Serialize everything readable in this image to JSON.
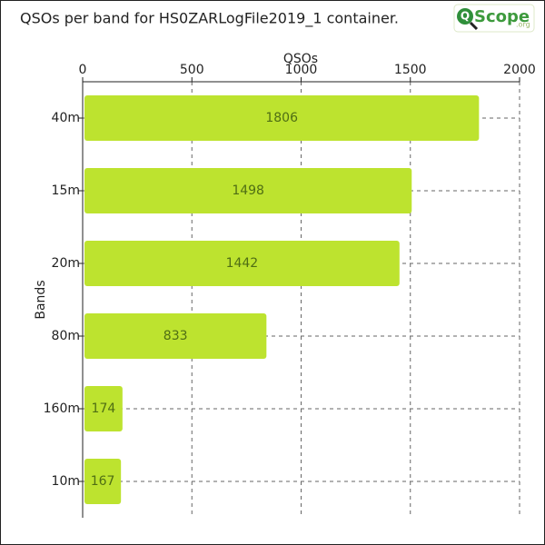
{
  "chart_data": {
    "type": "bar",
    "orientation": "horizontal",
    "title": "QSOs per band for HS0ZARLogFile2019_1 container.",
    "logo": {
      "mark": "Q",
      "text": "Scope",
      "suffix": ".org"
    },
    "x_label": "QSOs",
    "y_label": "Bands",
    "categories": [
      "40m",
      "15m",
      "20m",
      "80m",
      "160m",
      "10m"
    ],
    "values": [
      1806,
      1498,
      1442,
      833,
      174,
      167
    ],
    "color": "#bde32f",
    "label_color": "#4f6e14",
    "xlim": [
      0,
      2000
    ],
    "xticks": [
      0,
      500,
      1000,
      1500,
      2000
    ],
    "grid": true
  }
}
